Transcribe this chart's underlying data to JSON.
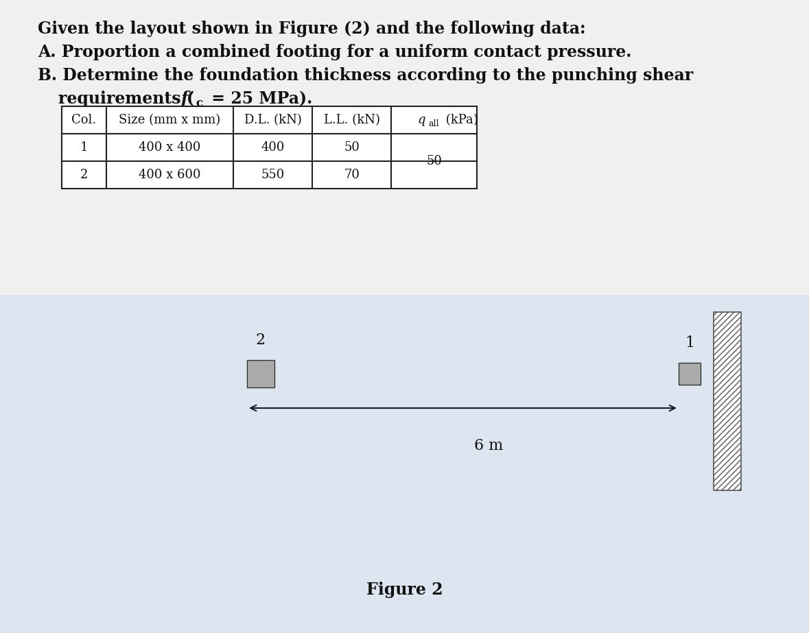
{
  "bg_color_top": "#f0f0f0",
  "bg_color_bottom": "#dde6f0",
  "text_line1": "Given the layout shown in Figure (2) and the following data:",
  "text_line2": "A. Proportion a combined footing for a uniform contact pressure.",
  "text_line3a": "B. Determine the foundation thickness according to the punching shear",
  "text_line3b_pre": "   requirements (",
  "text_line3b_end": " = 25 MPa).",
  "table_headers": [
    "Col.",
    "Size (mm x mm)",
    "D.L. (kN)",
    "L.L. (kN)",
    "qall (kPa)"
  ],
  "table_row1": [
    "1",
    "400 x 400",
    "400",
    "50",
    "50"
  ],
  "table_row2": [
    "2",
    "400 x 600",
    "550",
    "70",
    ""
  ],
  "figure_label": "Figure 2",
  "distance_label": "6 m",
  "col1_label": "1",
  "col2_label": "2",
  "arrow_color": "#1a1a2e",
  "col_fill_color": "#aaaaaa",
  "wall_color": "#cccccc",
  "table_line_color": "#222222",
  "text_color": "#111111",
  "white": "#ffffff"
}
